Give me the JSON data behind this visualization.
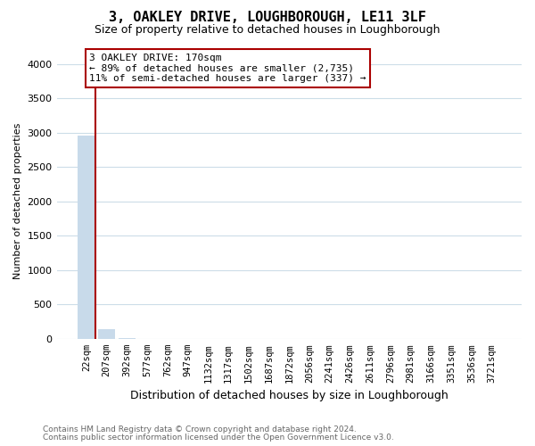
{
  "title": "3, OAKLEY DRIVE, LOUGHBOROUGH, LE11 3LF",
  "subtitle": "Size of property relative to detached houses in Loughborough",
  "xlabel": "Distribution of detached houses by size in Loughborough",
  "ylabel": "Number of detached properties",
  "categories": [
    "22sqm",
    "207sqm",
    "392sqm",
    "577sqm",
    "762sqm",
    "947sqm",
    "1132sqm",
    "1317sqm",
    "1502sqm",
    "1687sqm",
    "1872sqm",
    "2056sqm",
    "2241sqm",
    "2426sqm",
    "2611sqm",
    "2796sqm",
    "2981sqm",
    "3166sqm",
    "3351sqm",
    "3536sqm",
    "3721sqm"
  ],
  "values": [
    2960,
    145,
    12,
    5,
    3,
    2,
    1,
    1,
    1,
    0,
    0,
    0,
    0,
    0,
    0,
    0,
    0,
    0,
    0,
    0,
    0
  ],
  "bar_color": "#c8daea",
  "marker_color": "#aa0000",
  "ylim": [
    0,
    4000
  ],
  "yticks": [
    0,
    500,
    1000,
    1500,
    2000,
    2500,
    3000,
    3500,
    4000
  ],
  "annotation_line1": "3 OAKLEY DRIVE: 170sqm",
  "annotation_line2": "← 89% of detached houses are smaller (2,735)",
  "annotation_line3": "11% of semi-detached houses are larger (337) →",
  "footer_line1": "Contains HM Land Registry data © Crown copyright and database right 2024.",
  "footer_line2": "Contains public sector information licensed under the Open Government Licence v3.0.",
  "background_color": "#ffffff",
  "grid_color": "#ccdde8",
  "title_fontsize": 11,
  "subtitle_fontsize": 9,
  "tick_fontsize": 7.5,
  "ylabel_fontsize": 8,
  "xlabel_fontsize": 9,
  "annotation_box_edgecolor": "#aa0000",
  "footer_color": "#666666",
  "footer_fontsize": 6.5
}
